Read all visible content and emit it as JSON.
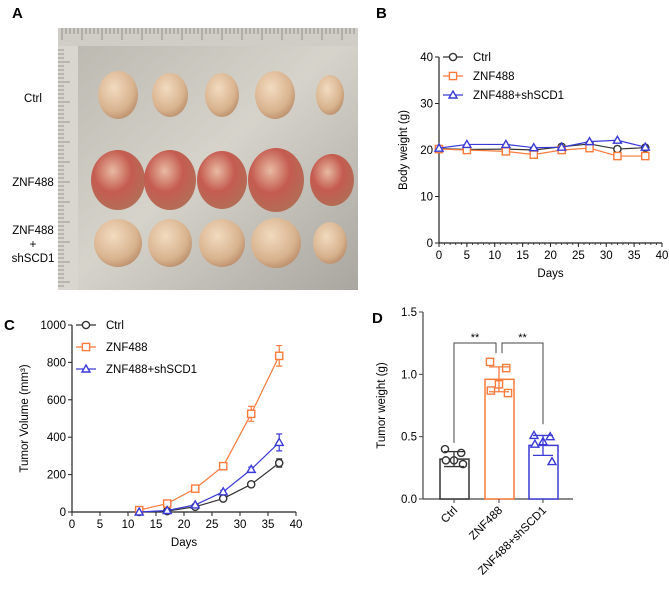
{
  "panel_labels": [
    "A",
    "B",
    "C",
    "D"
  ],
  "photo": {
    "row_labels": [
      "Ctrl",
      "ZNF488",
      "ZNF488\n+\nshSCD1"
    ],
    "row_label_lines": [
      [
        "Ctrl"
      ],
      [
        "ZNF488"
      ],
      [
        "ZNF488",
        "+",
        "shSCD1"
      ]
    ]
  },
  "colors": {
    "Ctrl": "#333333",
    "ZNF488": "#f97b3c",
    "ZNF488+shSCD1": "#3a3ad6"
  },
  "chart_data": [
    {
      "id": "B",
      "type": "line",
      "xlabel": "Days",
      "ylabel": "Body weight (g)",
      "xlim": [
        0,
        40
      ],
      "ylim": [
        0,
        40
      ],
      "xticks": [
        0,
        5,
        10,
        15,
        20,
        25,
        30,
        35,
        40
      ],
      "yticks": [
        0,
        10,
        20,
        30,
        40
      ],
      "legend": "top-left",
      "x": [
        0,
        5,
        12,
        17,
        22,
        27,
        32,
        37
      ],
      "series": [
        {
          "name": "Ctrl",
          "marker": "circle",
          "values": [
            20.3,
            20.1,
            20.2,
            20.0,
            20.7,
            21.3,
            20.2,
            20.5
          ]
        },
        {
          "name": "ZNF488",
          "marker": "square",
          "values": [
            20.2,
            20.0,
            19.7,
            19.0,
            20.0,
            20.4,
            18.7,
            18.7
          ]
        },
        {
          "name": "ZNF488+shSCD1",
          "marker": "triangle",
          "values": [
            20.4,
            21.2,
            21.2,
            20.5,
            20.6,
            21.8,
            22.1,
            20.6
          ]
        }
      ]
    },
    {
      "id": "C",
      "type": "line",
      "xlabel": "Days",
      "ylabel": "Tumor Volume (mm³)",
      "xlim": [
        0,
        40
      ],
      "ylim": [
        0,
        1000
      ],
      "xticks": [
        0,
        5,
        10,
        15,
        20,
        25,
        30,
        35,
        40
      ],
      "yticks": [
        0,
        200,
        400,
        600,
        800,
        1000
      ],
      "legend": "top-left",
      "x": [
        12,
        17,
        22,
        27,
        32,
        37
      ],
      "series": [
        {
          "name": "Ctrl",
          "marker": "circle",
          "values": [
            0,
            5,
            28,
            72,
            148,
            262
          ],
          "errors": [
            0,
            2,
            4,
            6,
            10,
            22
          ]
        },
        {
          "name": "ZNF488",
          "marker": "square",
          "values": [
            10,
            45,
            125,
            245,
            525,
            835
          ],
          "errors": [
            2,
            4,
            8,
            10,
            40,
            55
          ]
        },
        {
          "name": "ZNF488+shSCD1",
          "marker": "triangle",
          "values": [
            0,
            8,
            38,
            108,
            228,
            372
          ],
          "errors": [
            0,
            2,
            4,
            8,
            12,
            45
          ]
        }
      ]
    },
    {
      "id": "D",
      "type": "bar",
      "ylabel": "Tumor weight (g)",
      "ylim": [
        0,
        1.5
      ],
      "yticks": [
        "0.0",
        "0.5",
        "1.0",
        "1.5"
      ],
      "categories": [
        "Ctrl",
        "ZNF488",
        "ZNF488+shSCD1"
      ],
      "values": [
        0.32,
        0.96,
        0.43
      ],
      "sd": [
        0.06,
        0.1,
        0.08
      ],
      "points": [
        [
          0.4,
          0.37,
          0.31,
          0.31,
          0.28
        ],
        [
          1.1,
          1.05,
          0.92,
          0.87,
          0.85
        ],
        [
          0.51,
          0.5,
          0.46,
          0.44,
          0.3
        ]
      ],
      "markers": [
        "circle",
        "square",
        "triangle"
      ],
      "significance": [
        {
          "pair": [
            0,
            1
          ],
          "label": "**"
        },
        {
          "pair": [
            1,
            2
          ],
          "label": "**"
        }
      ]
    }
  ]
}
